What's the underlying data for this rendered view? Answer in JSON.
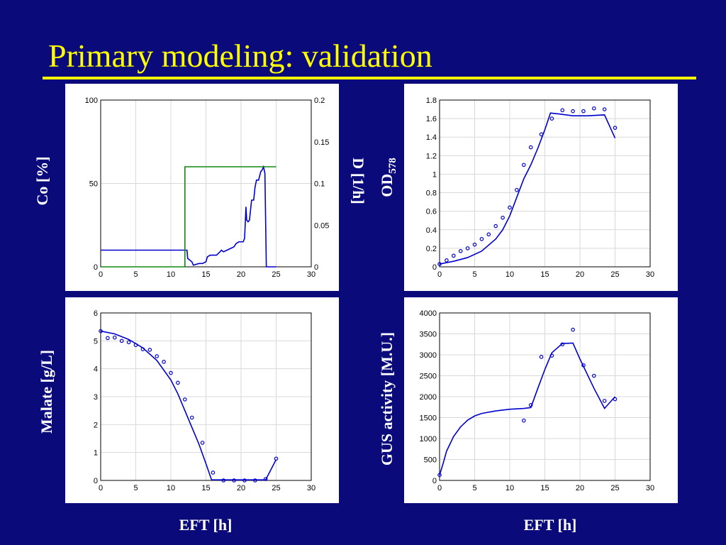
{
  "slide": {
    "title": "Primary modeling:  validation",
    "background": "#0a0a7a",
    "title_color": "#ffff00"
  },
  "labels": {
    "co": "Co [%]",
    "d": "D [1/h]",
    "od_main": "OD",
    "od_sub": "578",
    "malate": "Malate [g/L]",
    "gus": "GUS activity [M.U.]",
    "eft_left": "EFT [h]",
    "eft_right": "EFT [h]"
  },
  "chart_data": [
    {
      "id": "co-dilution",
      "type": "line",
      "xlim": [
        0,
        30
      ],
      "xticks": [
        0,
        5,
        10,
        15,
        20,
        25,
        30
      ],
      "ylim": [
        0,
        100
      ],
      "yticks": [
        0,
        50,
        100
      ],
      "y2lim": [
        0,
        0.2
      ],
      "y2ticks": [
        "0",
        "0.05",
        "0.1",
        "0.15",
        "0.2"
      ],
      "grid": true,
      "series": [
        {
          "axis": "left",
          "color": "#0000cc",
          "x": [
            0,
            12.3,
            12.4,
            13.0,
            13.2,
            14.0,
            14.5,
            15.0,
            15.2,
            15.6,
            16.0,
            16.5,
            17.0,
            17.2,
            17.5,
            18.0,
            18.5,
            19.0,
            19.3,
            19.7,
            20.0,
            20.3,
            20.5,
            20.6,
            20.7,
            20.8,
            21.0,
            21.2,
            21.5,
            21.8,
            22.0,
            22.2,
            22.5,
            22.8,
            23.0,
            23.2,
            23.4,
            23.6,
            25
          ],
          "y": [
            10,
            10,
            5,
            3,
            1,
            2,
            2,
            3,
            6,
            7,
            7,
            7,
            9,
            10,
            9,
            10,
            11,
            12,
            14,
            15,
            15,
            15,
            17,
            26,
            36,
            28,
            27,
            28,
            40,
            40,
            48,
            52,
            52,
            57,
            58,
            60,
            56,
            0,
            0
          ]
        },
        {
          "axis": "right",
          "color": "#118811",
          "x": [
            0,
            12,
            12,
            25
          ],
          "y": [
            0,
            0,
            0.12,
            0.12
          ]
        }
      ]
    },
    {
      "id": "od578",
      "type": "line",
      "xlim": [
        0,
        30
      ],
      "xticks": [
        0,
        5,
        10,
        15,
        20,
        25,
        30
      ],
      "ylim": [
        0,
        1.8
      ],
      "yticks": [
        "0",
        "0.2",
        "0.4",
        "0.6",
        "0.8",
        "1",
        "1.2",
        "1.4",
        "1.6",
        "1.8"
      ],
      "grid": true,
      "model": {
        "color": "#0000cc",
        "x": [
          0,
          2,
          4,
          6,
          8,
          9,
          10,
          11,
          12,
          13,
          14,
          15,
          15.8,
          17,
          19,
          21,
          23.5,
          25
        ],
        "y": [
          0.03,
          0.06,
          0.1,
          0.17,
          0.3,
          0.4,
          0.55,
          0.75,
          0.95,
          1.1,
          1.28,
          1.48,
          1.66,
          1.65,
          1.63,
          1.63,
          1.64,
          1.39
        ]
      },
      "points": {
        "color": "#0000cc",
        "x": [
          0,
          1,
          2,
          3,
          4,
          5,
          6,
          7,
          8,
          9,
          10,
          11,
          12,
          13,
          14.5,
          16,
          17.5,
          19,
          20.5,
          22,
          23.5,
          25
        ],
        "y": [
          0.03,
          0.07,
          0.12,
          0.17,
          0.2,
          0.24,
          0.3,
          0.35,
          0.44,
          0.53,
          0.64,
          0.83,
          1.1,
          1.29,
          1.43,
          1.6,
          1.69,
          1.68,
          1.68,
          1.71,
          1.7,
          1.5
        ]
      }
    },
    {
      "id": "malate",
      "type": "line",
      "xlim": [
        0,
        30
      ],
      "xticks": [
        0,
        5,
        10,
        15,
        20,
        25,
        30
      ],
      "ylim": [
        0,
        6
      ],
      "yticks": [
        "0",
        "1",
        "2",
        "3",
        "4",
        "5",
        "6"
      ],
      "grid": true,
      "model": {
        "color": "#0000cc",
        "x": [
          0,
          2,
          4,
          6,
          8,
          10,
          11,
          12,
          13,
          14,
          15,
          15.8,
          17,
          19,
          21,
          23.5,
          25
        ],
        "y": [
          5.35,
          5.25,
          5.05,
          4.75,
          4.3,
          3.6,
          3.1,
          2.5,
          1.9,
          1.3,
          0.6,
          0.02,
          0.02,
          0.02,
          0.02,
          0.02,
          0.75
        ]
      },
      "points": {
        "color": "#0000cc",
        "x": [
          0,
          1,
          2,
          3,
          4,
          5,
          6,
          7,
          8,
          9,
          10,
          11,
          12,
          13,
          14.5,
          16,
          17.5,
          19,
          20.5,
          22,
          23.5,
          25
        ],
        "y": [
          5.35,
          5.1,
          5.12,
          5.0,
          4.95,
          4.85,
          4.7,
          4.68,
          4.45,
          4.25,
          3.85,
          3.5,
          2.9,
          2.25,
          1.35,
          0.28,
          0.0,
          0.0,
          0.0,
          0.0,
          0.05,
          0.78
        ]
      }
    },
    {
      "id": "gus",
      "type": "line",
      "xlim": [
        0,
        30
      ],
      "xticks": [
        0,
        5,
        10,
        15,
        20,
        25,
        30
      ],
      "ylim": [
        0,
        4000
      ],
      "yticks": [
        "0",
        "500",
        "1000",
        "1500",
        "2000",
        "2500",
        "3000",
        "3500",
        "4000"
      ],
      "grid": true,
      "model": {
        "color": "#0000cc",
        "x": [
          0,
          0.5,
          1,
          2,
          3,
          4,
          5,
          6,
          8,
          10,
          12,
          13,
          14,
          15,
          16,
          17.5,
          19,
          20,
          21,
          22,
          23.5,
          25
        ],
        "y": [
          130,
          400,
          700,
          1050,
          1280,
          1440,
          1540,
          1600,
          1660,
          1700,
          1720,
          1740,
          2200,
          2650,
          3050,
          3270,
          3280,
          2900,
          2550,
          2200,
          1720,
          2000
        ]
      },
      "points": {
        "color": "#0000cc",
        "x": [
          0,
          12,
          13,
          14.5,
          16,
          17.5,
          19,
          20.5,
          22,
          23.5,
          25
        ],
        "y": [
          130,
          1430,
          1800,
          2950,
          2980,
          3250,
          3600,
          2750,
          2500,
          1900,
          1940
        ]
      }
    }
  ]
}
